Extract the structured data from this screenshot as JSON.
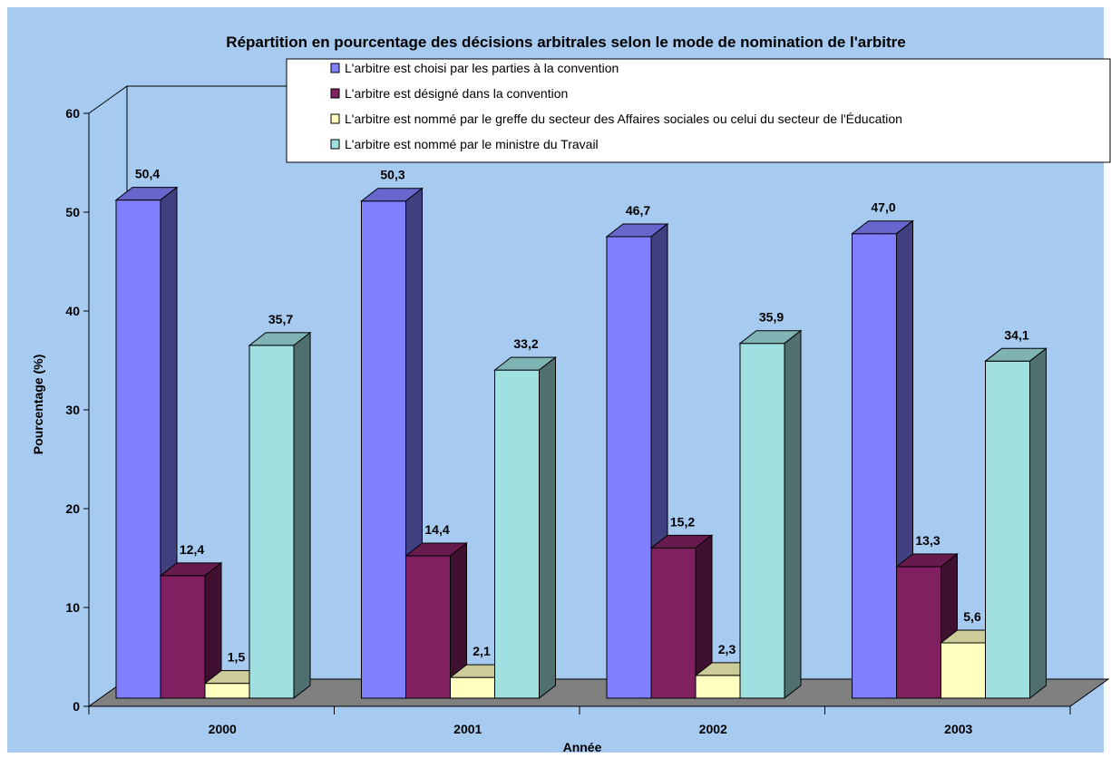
{
  "chart_data": {
    "type": "bar",
    "title": "Répartition en pourcentage des décisions arbitrales selon le mode de nomination de l'arbitre",
    "xlabel": "Année",
    "ylabel": "Pourcentage (%)",
    "categories": [
      "2000",
      "2001",
      "2002",
      "2003"
    ],
    "ylim": [
      0,
      60
    ],
    "yticks": [
      "0",
      "10",
      "20",
      "30",
      "40",
      "50",
      "60"
    ],
    "grid": false,
    "three_d": true,
    "legend_position": "top-right",
    "series": [
      {
        "name": "L'arbitre est choisi par les parties à la convention",
        "color": "#8080ff",
        "values": [
          50.4,
          50.3,
          46.7,
          47.0
        ],
        "labels": [
          "50,4",
          "50,3",
          "46,7",
          "47,0"
        ]
      },
      {
        "name": "L'arbitre est désigné dans la convention",
        "color": "#802060",
        "values": [
          12.4,
          14.4,
          15.2,
          13.3
        ],
        "labels": [
          "12,4",
          "14,4",
          "15,2",
          "13,3"
        ]
      },
      {
        "name": "L'arbitre est nommé par le greffe du secteur des Affaires sociales ou celui du secteur de l'Éducation",
        "color": "#ffffc0",
        "values": [
          1.5,
          2.1,
          2.3,
          5.6
        ],
        "labels": [
          "1,5",
          "2,1",
          "2,3",
          "5,6"
        ]
      },
      {
        "name": "L'arbitre est nommé par le ministre du Travail",
        "color": "#a0e0e0",
        "values": [
          35.7,
          33.2,
          35.9,
          34.1
        ],
        "labels": [
          "35,7",
          "33,2",
          "35,9",
          "34,1"
        ]
      }
    ]
  }
}
